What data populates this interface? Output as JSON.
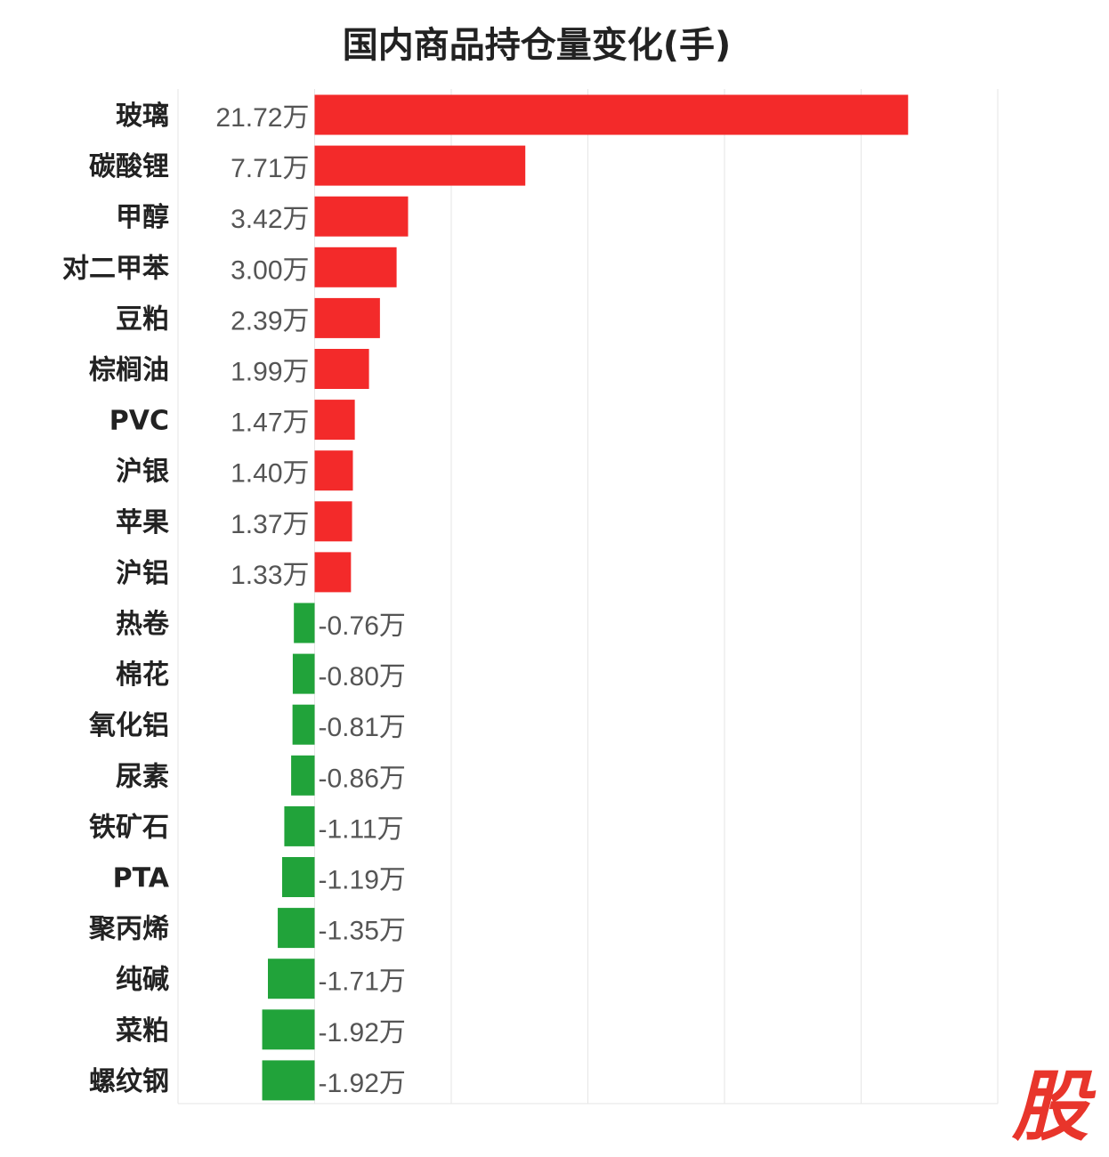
{
  "chart_data": {
    "type": "bar",
    "orientation": "horizontal",
    "title": "国内商品持仓量变化(手)",
    "unit": "万",
    "categories": [
      "玻璃",
      "碳酸锂",
      "甲醇",
      "对二甲苯",
      "豆粕",
      "棕榈油",
      "PVC",
      "沪银",
      "苹果",
      "沪铝",
      "热卷",
      "棉花",
      "氧化铝",
      "尿素",
      "铁矿石",
      "PTA",
      "聚丙烯",
      "纯碱",
      "菜粕",
      "螺纹钢"
    ],
    "values": [
      21.72,
      7.71,
      3.42,
      3.0,
      2.39,
      1.99,
      1.47,
      1.4,
      1.37,
      1.33,
      -0.76,
      -0.8,
      -0.81,
      -0.86,
      -1.11,
      -1.19,
      -1.35,
      -1.71,
      -1.92,
      -1.92
    ],
    "value_labels": [
      "21.72万",
      "7.71万",
      "3.42万",
      "3.00万",
      "2.39万",
      "1.99万",
      "1.47万",
      "1.40万",
      "1.37万",
      "1.33万",
      "-0.76万",
      "-0.80万",
      "-0.81万",
      "-0.86万",
      "-1.11万",
      "-1.19万",
      "-1.35万",
      "-1.71万",
      "-1.92万",
      "-1.92万"
    ],
    "xlim": [
      -5,
      25
    ],
    "grid": true,
    "colors": {
      "positive": "#f32a2a",
      "negative": "#21a33a",
      "grid": "#e6e6e6",
      "label": "#222222",
      "value_label": "#555555"
    }
  },
  "logo": {
    "text": "股"
  }
}
